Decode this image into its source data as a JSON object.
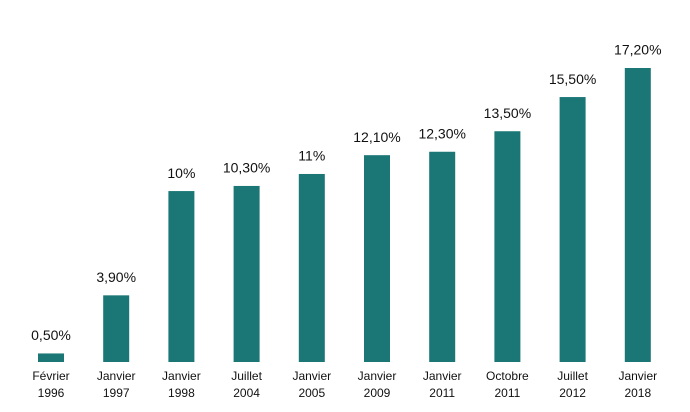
{
  "chart_data": {
    "type": "bar",
    "categories": [
      [
        "Février",
        "1996"
      ],
      [
        "Janvier",
        "1997"
      ],
      [
        "Janvier",
        "1998"
      ],
      [
        "Juillet",
        "2004"
      ],
      [
        "Janvier",
        "2005"
      ],
      [
        "Janvier",
        "2009"
      ],
      [
        "Janvier",
        "2011"
      ],
      [
        "Octobre",
        "2011"
      ],
      [
        "Juillet",
        "2012"
      ],
      [
        "Janvier",
        "2018"
      ]
    ],
    "values": [
      0.5,
      3.9,
      10,
      10.3,
      11,
      12.1,
      12.3,
      13.5,
      15.5,
      17.2
    ],
    "value_labels": [
      "0,50%",
      "3,90%",
      "10%",
      "10,30%",
      "11%",
      "12,10%",
      "12,30%",
      "13,50%",
      "15,50%",
      "17,20%"
    ],
    "color": "#1b7676"
  }
}
